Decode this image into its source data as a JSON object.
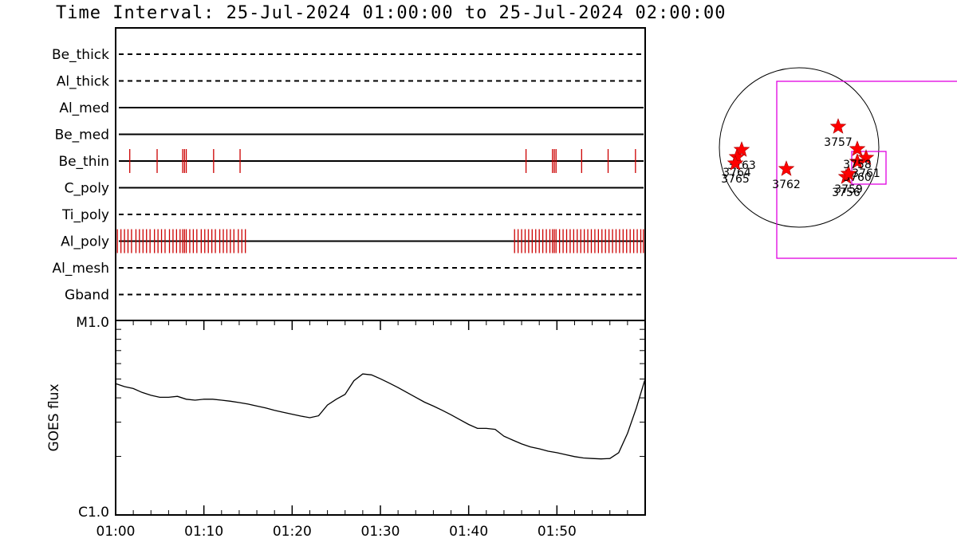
{
  "title": "Time Interval: 25-Jul-2024 01:00:00 to 25-Jul-2024 02:00:00",
  "colors": {
    "events": "#cc0000",
    "frame": "#000000",
    "fov": "#e000e0",
    "stars": "#ff0000"
  },
  "chart_data": [
    {
      "type": "event-timeline",
      "x_range_minutes": [
        0,
        60
      ],
      "channels": [
        {
          "name": "Be_thick",
          "style": "dashed",
          "events": []
        },
        {
          "name": "Al_thick",
          "style": "dashed",
          "events": []
        },
        {
          "name": "Al_med",
          "style": "solid",
          "events": []
        },
        {
          "name": "Be_med",
          "style": "solid",
          "events": []
        },
        {
          "name": "Be_thin",
          "style": "solid",
          "events": [
            1.6,
            4.7,
            7.6,
            7.8,
            8.0,
            11.1,
            14.1,
            46.5,
            49.5,
            49.7,
            49.9,
            52.8,
            55.8,
            58.9
          ]
        },
        {
          "name": "C_poly",
          "style": "solid",
          "events": []
        },
        {
          "name": "Ti_poly",
          "style": "dashed",
          "events": []
        },
        {
          "name": "Al_poly",
          "style": "solid",
          "events": [
            0.2,
            0.6,
            1.0,
            1.4,
            1.8,
            2.3,
            2.7,
            3.1,
            3.5,
            3.9,
            4.4,
            4.8,
            5.2,
            5.6,
            6.1,
            6.5,
            6.9,
            7.3,
            7.6,
            7.8,
            8.0,
            8.4,
            8.8,
            9.2,
            9.7,
            10.1,
            10.5,
            10.9,
            11.3,
            11.8,
            12.2,
            12.6,
            13.0,
            13.4,
            13.9,
            14.3,
            14.7,
            45.2,
            45.6,
            46.0,
            46.4,
            46.8,
            47.2,
            47.6,
            48.0,
            48.4,
            48.8,
            49.2,
            49.5,
            49.7,
            49.9,
            50.3,
            50.7,
            51.1,
            51.5,
            51.9,
            52.3,
            52.7,
            53.1,
            53.5,
            53.9,
            54.3,
            54.7,
            55.1,
            55.5,
            55.9,
            56.3,
            56.7,
            57.1,
            57.5,
            57.9,
            58.3,
            58.7,
            59.1,
            59.5,
            59.8
          ]
        },
        {
          "name": "Al_mesh",
          "style": "dashed",
          "events": []
        },
        {
          "name": "Gband",
          "style": "dashed",
          "events": []
        }
      ]
    },
    {
      "type": "line",
      "ylabel": "GOES flux",
      "yscale": "log",
      "ylim_labels": [
        "C1.0",
        "M1.0"
      ],
      "ylim_log": [
        0,
        1
      ],
      "xticks": [
        "01:00",
        "01:10",
        "01:20",
        "01:30",
        "01:40",
        "01:50"
      ],
      "xtick_minutes": [
        0,
        10,
        20,
        30,
        40,
        50
      ],
      "x_range_minutes": [
        0,
        60
      ],
      "x": [
        0,
        1,
        2,
        3,
        4,
        5,
        6,
        7,
        8,
        9,
        10,
        11,
        12,
        13,
        14,
        15,
        16,
        17,
        18,
        19,
        20,
        21,
        22,
        23,
        24,
        25,
        26,
        27,
        28,
        29,
        30,
        31,
        32,
        33,
        34,
        35,
        36,
        37,
        38,
        39,
        40,
        41,
        42,
        43,
        44,
        45,
        46,
        47,
        48,
        49,
        50,
        51,
        52,
        53,
        54,
        55,
        56,
        57,
        58,
        59,
        60
      ],
      "y": [
        0.675,
        0.66,
        0.65,
        0.63,
        0.615,
        0.605,
        0.605,
        0.61,
        0.595,
        0.59,
        0.595,
        0.595,
        0.59,
        0.585,
        0.578,
        0.57,
        0.56,
        0.55,
        0.538,
        0.528,
        0.518,
        0.508,
        0.5,
        0.51,
        0.565,
        0.595,
        0.62,
        0.69,
        0.725,
        0.72,
        0.7,
        0.678,
        0.655,
        0.63,
        0.605,
        0.58,
        0.56,
        0.538,
        0.515,
        0.49,
        0.465,
        0.445,
        0.445,
        0.44,
        0.405,
        0.385,
        0.365,
        0.35,
        0.34,
        0.328,
        0.32,
        0.31,
        0.3,
        0.293,
        0.29,
        0.288,
        0.29,
        0.32,
        0.42,
        0.55,
        0.7
      ]
    },
    {
      "type": "scatter",
      "description": "solar disk with active regions",
      "regions": [
        {
          "label": "3757",
          "x": 0.49,
          "y": -0.26
        },
        {
          "label": "3763",
          "x": -0.72,
          "y": 0.03
        },
        {
          "label": "3764",
          "x": -0.78,
          "y": 0.12
        },
        {
          "label": "3765",
          "x": -0.8,
          "y": 0.2
        },
        {
          "label": "3762",
          "x": -0.16,
          "y": 0.27
        },
        {
          "label": "3756",
          "x": 0.59,
          "y": 0.37
        },
        {
          "label": "3761",
          "x": 0.84,
          "y": 0.13
        },
        {
          "label": "3760",
          "x": 0.73,
          "y": 0.18
        },
        {
          "label": "3759",
          "x": 0.62,
          "y": 0.33
        },
        {
          "label": "3758",
          "x": 0.73,
          "y": 0.02
        }
      ]
    }
  ]
}
